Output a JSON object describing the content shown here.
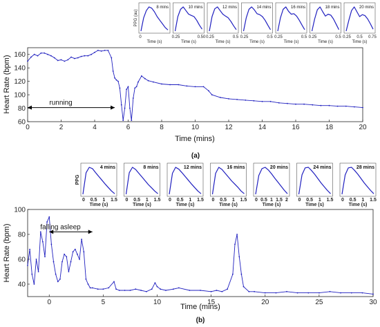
{
  "chart_data": [
    {
      "id": "a",
      "type": "line",
      "panel_label": "(a)",
      "xlabel": "Time (mins)",
      "ylabel": "Heart Rate (bpm)",
      "xlim": [
        0,
        20
      ],
      "ylim": [
        60,
        170
      ],
      "xticks": [
        "0",
        "2",
        "4",
        "6",
        "8",
        "10",
        "12",
        "14",
        "16",
        "18",
        "20"
      ],
      "yticks": [
        "60",
        "80",
        "100",
        "120",
        "140",
        "160"
      ],
      "grid": false,
      "color": "#1f1fbf",
      "annotation": {
        "text": "running",
        "x_start": 0,
        "x_end": 5.2,
        "y": 81
      },
      "x": [
        0,
        0.2,
        0.4,
        0.6,
        0.8,
        1.0,
        1.2,
        1.4,
        1.6,
        1.8,
        2.0,
        2.2,
        2.4,
        2.6,
        2.8,
        3.0,
        3.2,
        3.4,
        3.6,
        3.8,
        4.0,
        4.2,
        4.4,
        4.6,
        4.8,
        5.0,
        5.1,
        5.2,
        5.3,
        5.4,
        5.5,
        5.6,
        5.7,
        5.8,
        5.9,
        6.0,
        6.1,
        6.2,
        6.3,
        6.4,
        6.5,
        6.6,
        6.8,
        7.0,
        7.2,
        7.5,
        8.0,
        8.5,
        9.0,
        9.5,
        10.0,
        10.5,
        10.8,
        11.0,
        11.5,
        12.0,
        12.5,
        13.0,
        13.5,
        14.0,
        14.5,
        15.0,
        15.5,
        16.0,
        16.5,
        17.0,
        17.5,
        18.0,
        18.5,
        19.0,
        19.5,
        20.0
      ],
      "y": [
        150,
        156,
        160,
        158,
        162,
        162,
        160,
        158,
        155,
        151,
        152,
        150,
        152,
        156,
        154,
        155,
        157,
        158,
        158,
        160,
        163,
        166,
        165,
        166,
        166,
        155,
        135,
        125,
        122,
        120,
        110,
        85,
        62,
        80,
        108,
        112,
        80,
        62,
        95,
        110,
        112,
        119,
        128,
        124,
        121,
        119,
        116,
        115,
        115,
        113,
        112,
        112,
        106,
        100,
        96,
        94,
        93,
        92,
        91,
        90,
        90,
        88,
        87,
        86,
        86,
        85,
        84,
        84,
        83,
        83,
        82,
        81
      ]
    },
    {
      "id": "b",
      "type": "line",
      "panel_label": "(b)",
      "xlabel": "Time (mins)",
      "ylabel": "Heart Rate (bpm)",
      "xlim": [
        -2,
        30
      ],
      "ylim": [
        30,
        100
      ],
      "xticks": [
        "0",
        "5",
        "10",
        "15",
        "20",
        "25",
        "30"
      ],
      "yticks": [
        "40",
        "60",
        "80",
        "100"
      ],
      "grid": false,
      "color": "#1f1fbf",
      "annotation": {
        "text": "falling asleep",
        "x_start": 0,
        "x_end": 4,
        "y": 82
      },
      "x": [
        -2.0,
        -1.8,
        -1.6,
        -1.4,
        -1.2,
        -1.0,
        -0.8,
        -0.6,
        -0.4,
        -0.2,
        0.0,
        0.2,
        0.4,
        0.6,
        0.8,
        1.0,
        1.2,
        1.4,
        1.6,
        1.8,
        2.0,
        2.2,
        2.4,
        2.6,
        2.8,
        3.0,
        3.2,
        3.4,
        3.6,
        3.8,
        4.0,
        4.5,
        5.0,
        5.5,
        6.0,
        6.2,
        6.5,
        7.0,
        7.5,
        8.0,
        8.5,
        9.0,
        9.5,
        9.8,
        10.0,
        10.3,
        10.8,
        11.5,
        12.0,
        13.0,
        14.0,
        15.0,
        15.5,
        16.0,
        16.5,
        17.0,
        17.2,
        17.4,
        17.6,
        17.8,
        18.0,
        18.5,
        19.0,
        20.0,
        21.0,
        22.0,
        23.0,
        24.0,
        25.0,
        26.0,
        27.0,
        28.0,
        29.0,
        30.0
      ],
      "y": [
        55,
        68,
        48,
        40,
        60,
        50,
        82,
        74,
        62,
        90,
        94,
        72,
        58,
        48,
        42,
        44,
        58,
        64,
        62,
        50,
        58,
        66,
        68,
        64,
        60,
        76,
        66,
        44,
        40,
        37,
        37,
        36,
        36,
        37,
        42,
        36,
        35,
        35,
        35,
        36,
        35,
        34,
        36,
        41,
        38,
        36,
        35,
        36,
        37,
        35,
        35,
        34,
        35,
        34,
        36,
        48,
        72,
        80,
        62,
        48,
        38,
        34,
        34,
        33,
        33,
        34,
        33,
        33,
        33,
        34,
        33,
        33,
        33,
        32
      ]
    }
  ],
  "insets_a": {
    "ylabel": "PPG (au)",
    "xlabel": "Time (s)",
    "items": [
      {
        "title": "8 mins",
        "xticks": [
          "0"
        ],
        "xmax": 0.4,
        "shape": [
          0,
          0.55,
          0.85,
          1.0,
          0.95,
          0.8,
          0.6,
          0.45,
          0.3,
          0.15,
          0.05
        ]
      },
      {
        "title": "10 mins",
        "xticks": [
          "0.25",
          "0.50"
        ],
        "xmax": 0.55,
        "shape": [
          0,
          0.6,
          0.9,
          1.0,
          0.85,
          0.7,
          0.65,
          0.6,
          0.45,
          0.25,
          0.08
        ]
      },
      {
        "title": "12 mins",
        "xticks": [
          "0.25",
          "0.5"
        ],
        "xmax": 0.55,
        "shape": [
          0,
          0.6,
          0.92,
          1.0,
          0.85,
          0.7,
          0.62,
          0.55,
          0.4,
          0.22,
          0.06
        ]
      },
      {
        "title": "14 mins",
        "xticks": [
          "0.25",
          "0.5"
        ],
        "xmax": 0.6,
        "shape": [
          0,
          0.55,
          0.9,
          1.0,
          0.88,
          0.72,
          0.68,
          0.6,
          0.45,
          0.25,
          0.06
        ]
      },
      {
        "title": "16 mins",
        "xticks": [
          "0.25",
          "0.5"
        ],
        "xmax": 0.6,
        "shape": [
          0,
          0.55,
          0.9,
          1.0,
          0.82,
          0.7,
          0.72,
          0.62,
          0.45,
          0.25,
          0.06
        ]
      },
      {
        "title": "18 mins",
        "xticks": [
          "0.25",
          "0.5"
        ],
        "xmax": 0.6,
        "shape": [
          0,
          0.5,
          0.88,
          1.0,
          0.8,
          0.62,
          0.7,
          0.66,
          0.5,
          0.28,
          0.06
        ]
      },
      {
        "title": "20 mins",
        "xticks": [
          "0.25",
          "0.5",
          "0.75"
        ],
        "xmax": 0.8,
        "shape": [
          0,
          0.45,
          0.85,
          1.0,
          0.8,
          0.6,
          0.68,
          0.64,
          0.5,
          0.3,
          0.08
        ]
      }
    ]
  },
  "insets_b": {
    "ylabel": "PPG",
    "xlabel": "Time (s)",
    "items": [
      {
        "title": "4 mins",
        "xticks": [
          "0",
          "0.5",
          "1",
          "1.5"
        ],
        "shape": [
          0,
          0.8,
          1.0,
          0.95,
          0.8,
          0.66,
          0.52,
          0.38,
          0.25,
          0.12,
          0.02
        ]
      },
      {
        "title": "8 mins",
        "xticks": [
          "0",
          "0.5",
          "1",
          "1.5"
        ],
        "shape": [
          0,
          0.8,
          1.0,
          0.92,
          0.78,
          0.64,
          0.5,
          0.36,
          0.24,
          0.12,
          0.02
        ]
      },
      {
        "title": "12 mins",
        "xticks": [
          "0",
          "0.5",
          "1",
          "1.5"
        ],
        "shape": [
          0,
          0.78,
          1.0,
          0.93,
          0.8,
          0.66,
          0.52,
          0.38,
          0.25,
          0.12,
          0.02
        ]
      },
      {
        "title": "16 mins",
        "xticks": [
          "0",
          "0.5",
          "1",
          "1.5"
        ],
        "shape": [
          0,
          0.78,
          1.0,
          0.92,
          0.78,
          0.64,
          0.5,
          0.38,
          0.26,
          0.12,
          0.02
        ]
      },
      {
        "title": "20 mins",
        "xticks": [
          "0",
          "0.5",
          "1",
          "1.5",
          "2"
        ],
        "shape": [
          0,
          0.7,
          0.95,
          1.0,
          0.9,
          0.76,
          0.6,
          0.45,
          0.3,
          0.15,
          0.02
        ]
      },
      {
        "title": "24 mins",
        "xticks": [
          "0",
          "0.5",
          "1",
          "1.5"
        ],
        "shape": [
          0,
          0.72,
          0.98,
          1.0,
          0.88,
          0.74,
          0.58,
          0.42,
          0.28,
          0.14,
          0.02
        ]
      },
      {
        "title": "28 mins",
        "xticks": [
          "0",
          "0.5",
          "1",
          "1.5"
        ],
        "shape": [
          0,
          0.72,
          0.98,
          1.0,
          0.88,
          0.74,
          0.58,
          0.42,
          0.28,
          0.14,
          0.02
        ]
      }
    ]
  }
}
